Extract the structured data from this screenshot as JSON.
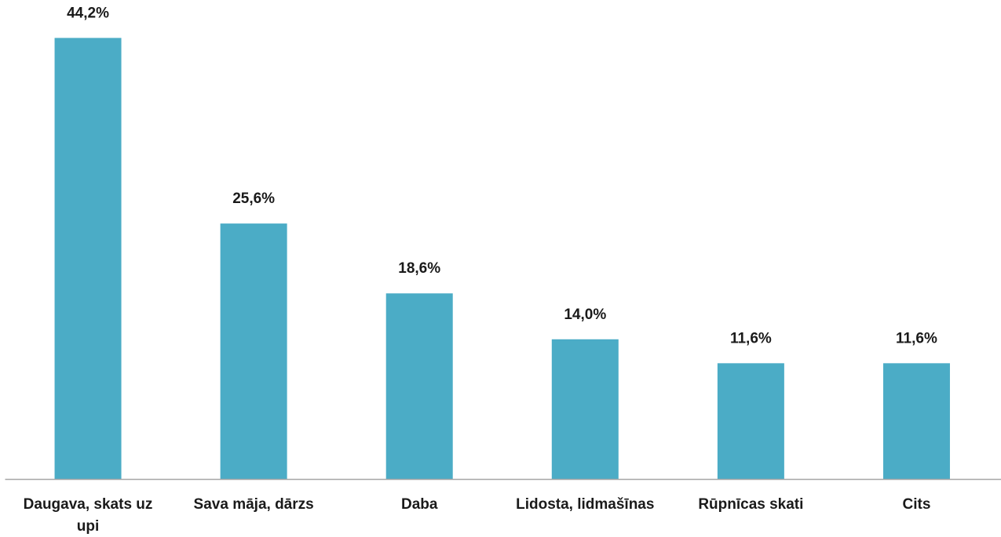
{
  "chart_data": {
    "type": "bar",
    "categories": [
      "Daugava, skats uz upi",
      "Sava māja, dārzs",
      "Daba",
      "Lidosta, lidmašīnas",
      "Rūpnīcas skati",
      "Cits"
    ],
    "values": [
      44.2,
      25.6,
      18.6,
      14.0,
      11.6,
      11.6
    ],
    "value_labels": [
      "44,2%",
      "25,6%",
      "18,6%",
      "14,0%",
      "11,6%",
      "11,6%"
    ],
    "color": "#4bacc6",
    "ylim": [
      0,
      48
    ]
  }
}
